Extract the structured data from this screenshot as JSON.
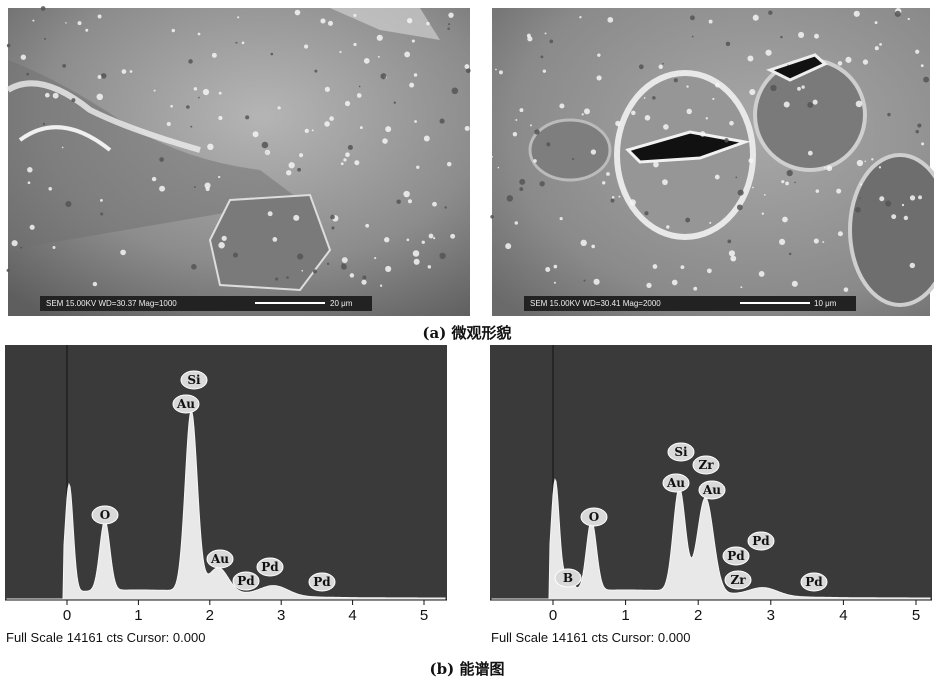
{
  "figure": {
    "micrographs": [
      {
        "info": "SEM 15.00KV WD=30.37 Mag=1000",
        "scale": "20 μm"
      },
      {
        "info": "SEM 15.00KV WD=30.41 Mag=2000",
        "scale": "10 μm"
      }
    ],
    "caption_a": "(a)  微观形貌",
    "spectra": [
      {
        "x_ticks": [
          0,
          1,
          2,
          3,
          4,
          5
        ],
        "peak_labels": [
          "Si",
          "Au",
          "O",
          "Au",
          "Pd",
          "Pd",
          "Pd"
        ],
        "footer": "Full Scale 14161 cts Cursor: 0.000"
      },
      {
        "x_ticks": [
          0,
          1,
          2,
          3,
          4,
          5
        ],
        "peak_labels": [
          "Si",
          "Zr",
          "Au",
          "Au",
          "O",
          "Pd",
          "Pd",
          "Zr",
          "Pd",
          "B"
        ],
        "footer": "Full Scale 14161 cts Cursor: 0.000"
      }
    ],
    "caption_b": "(b)  能谱图"
  }
}
